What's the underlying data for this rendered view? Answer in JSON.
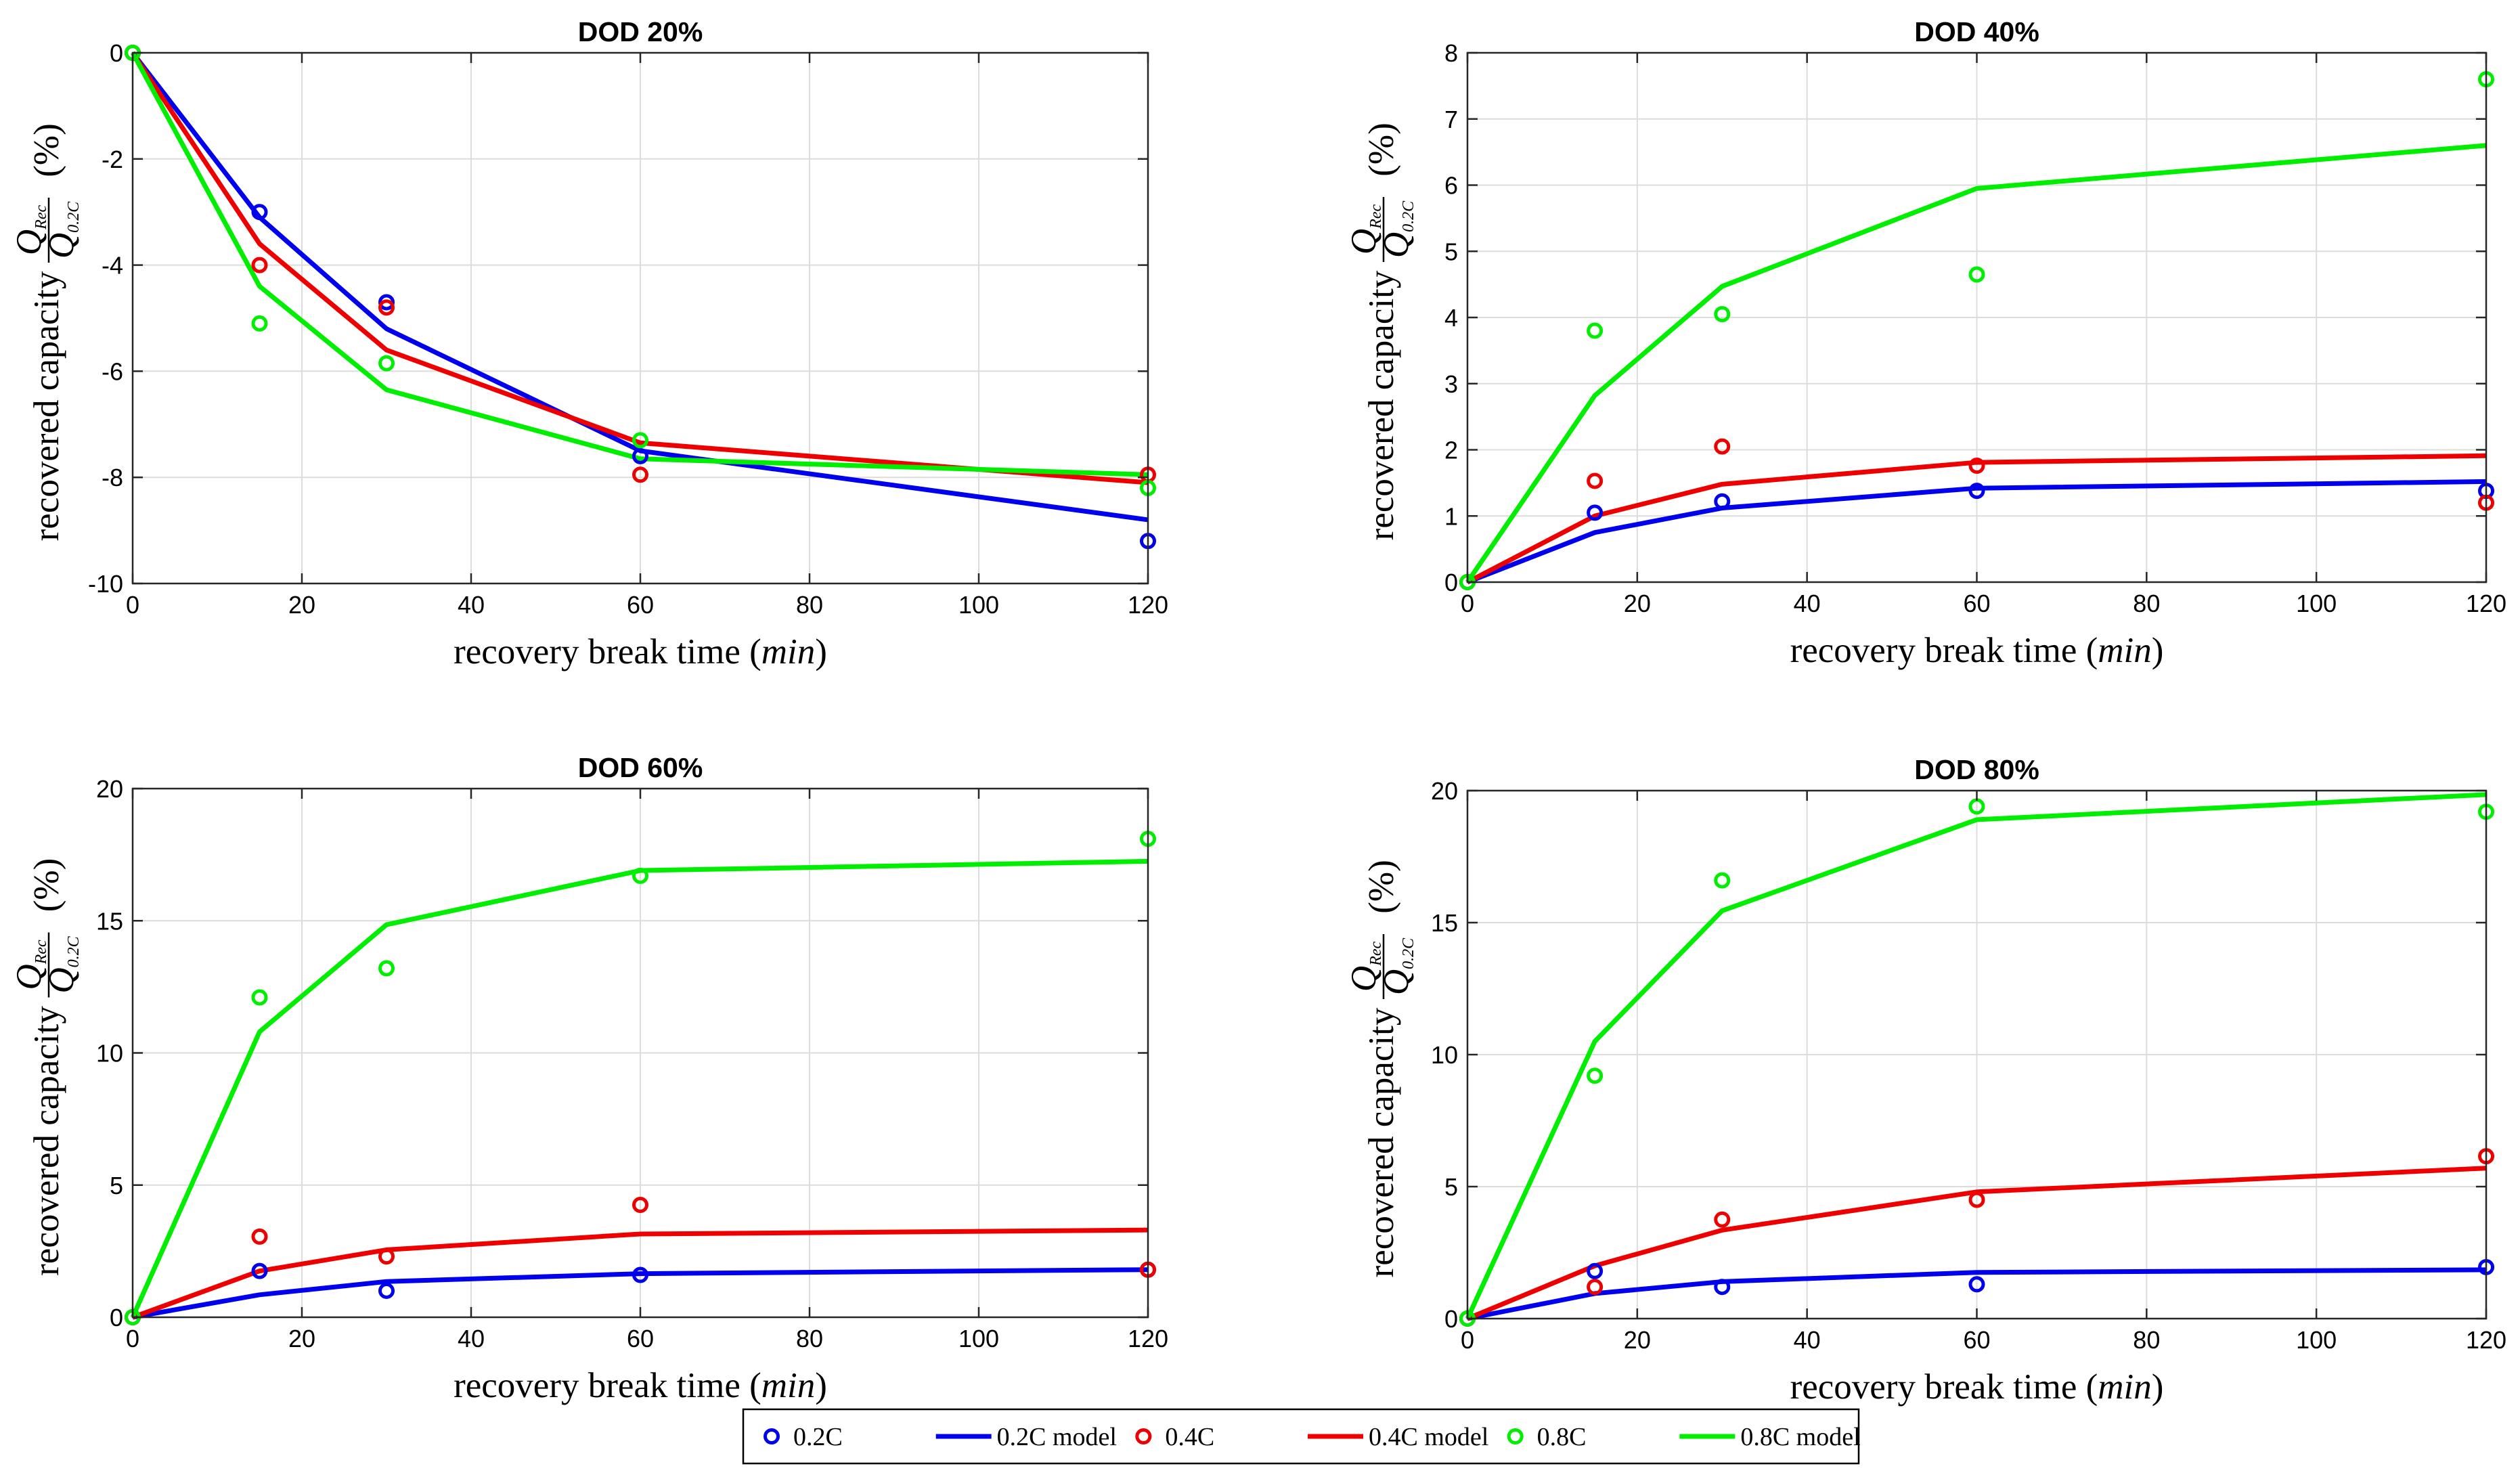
{
  "colors": {
    "0.2C": "#0000ee",
    "0.4C": "#ee0000",
    "0.8C": "#00ee00",
    "grid": "#dcdcdc",
    "axis": "#262626"
  },
  "axis_text": {
    "xlabel_main": "recovery break time",
    "xlabel_unit": "min",
    "ylabel_main": "recovered capacity",
    "ylabel_num_var": "Q",
    "ylabel_num_sub": "Rec",
    "ylabel_den_var": "Q",
    "ylabel_den_sub": "0.2C",
    "ylabel_unit": "(%)"
  },
  "legend": {
    "placement": "bottom-center",
    "entries": [
      {
        "label": "0.2C",
        "kind": "marker",
        "series": "0.2C"
      },
      {
        "label": "0.2C model",
        "kind": "line",
        "series": "0.2C"
      },
      {
        "label": "0.4C",
        "kind": "marker",
        "series": "0.4C"
      },
      {
        "label": "0.4C model",
        "kind": "line",
        "series": "0.4C"
      },
      {
        "label": "0.8C",
        "kind": "marker",
        "series": "0.8C"
      },
      {
        "label": "0.8C model",
        "kind": "line",
        "series": "0.8C"
      }
    ]
  },
  "chart_data": [
    {
      "type": "line",
      "title": "DOD 20%",
      "xlabel": "recovery break time (min)",
      "ylabel": "recovered capacity Q_Rec/Q_0.2C (%)",
      "xlim": [
        0,
        120
      ],
      "ylim": [
        -10,
        0
      ],
      "xticks": [
        0,
        20,
        40,
        60,
        80,
        100,
        120
      ],
      "yticks": [
        -10,
        -8,
        -6,
        -4,
        -2,
        0
      ],
      "grid": true,
      "x": [
        0,
        15,
        30,
        60,
        120
      ],
      "series": [
        {
          "name": "0.2C",
          "style": "markers",
          "values": [
            0,
            -3.0,
            -4.7,
            -7.6,
            -9.2
          ]
        },
        {
          "name": "0.4C",
          "style": "markers",
          "values": [
            0,
            -4.0,
            -4.8,
            -7.95,
            -7.95
          ]
        },
        {
          "name": "0.8C",
          "style": "markers",
          "values": [
            0,
            -5.1,
            -5.85,
            -7.3,
            -8.2
          ]
        },
        {
          "name": "0.2C model",
          "style": "line",
          "values": [
            0,
            -3.1,
            -5.2,
            -7.5,
            -8.8
          ]
        },
        {
          "name": "0.4C model",
          "style": "line",
          "values": [
            0,
            -3.6,
            -5.6,
            -7.35,
            -8.1
          ]
        },
        {
          "name": "0.8C model",
          "style": "line",
          "values": [
            0,
            -4.4,
            -6.35,
            -7.65,
            -7.95
          ]
        }
      ]
    },
    {
      "type": "line",
      "title": "DOD 40%",
      "xlabel": "recovery break time (min)",
      "ylabel": "recovered capacity Q_Rec/Q_0.2C (%)",
      "xlim": [
        0,
        120
      ],
      "ylim": [
        0,
        8
      ],
      "xticks": [
        0,
        20,
        40,
        60,
        80,
        100,
        120
      ],
      "yticks": [
        0,
        1,
        2,
        3,
        4,
        5,
        6,
        7,
        8
      ],
      "grid": true,
      "x": [
        0,
        15,
        30,
        60,
        120
      ],
      "series": [
        {
          "name": "0.2C",
          "style": "markers",
          "values": [
            0,
            1.05,
            1.22,
            1.38,
            1.38
          ]
        },
        {
          "name": "0.4C",
          "style": "markers",
          "values": [
            0,
            1.53,
            2.05,
            1.76,
            1.2
          ]
        },
        {
          "name": "0.8C",
          "style": "markers",
          "values": [
            0,
            3.8,
            4.05,
            4.65,
            7.6
          ]
        },
        {
          "name": "0.2C model",
          "style": "line",
          "values": [
            0,
            0.75,
            1.12,
            1.42,
            1.52
          ]
        },
        {
          "name": "0.4C model",
          "style": "line",
          "values": [
            0,
            1.0,
            1.48,
            1.81,
            1.91
          ]
        },
        {
          "name": "0.8C model",
          "style": "line",
          "values": [
            0,
            2.82,
            4.47,
            5.95,
            6.6
          ]
        }
      ]
    },
    {
      "type": "line",
      "title": "DOD 60%",
      "xlabel": "recovery break time (min)",
      "ylabel": "recovered capacity Q_Rec/Q_0.2C (%)",
      "xlim": [
        0,
        120
      ],
      "ylim": [
        0,
        20
      ],
      "xticks": [
        0,
        20,
        40,
        60,
        80,
        100,
        120
      ],
      "yticks": [
        0,
        5,
        10,
        15,
        20
      ],
      "grid": true,
      "x": [
        0,
        15,
        30,
        60,
        120
      ],
      "series": [
        {
          "name": "0.2C",
          "style": "markers",
          "values": [
            0,
            1.75,
            1.0,
            1.6,
            1.8
          ]
        },
        {
          "name": "0.4C",
          "style": "markers",
          "values": [
            0,
            3.05,
            2.3,
            4.25,
            1.8
          ]
        },
        {
          "name": "0.8C",
          "style": "markers",
          "values": [
            0,
            12.1,
            13.2,
            16.7,
            18.1
          ]
        },
        {
          "name": "0.2C model",
          "style": "line",
          "values": [
            0,
            0.85,
            1.35,
            1.65,
            1.8
          ]
        },
        {
          "name": "0.4C model",
          "style": "line",
          "values": [
            0,
            1.75,
            2.55,
            3.15,
            3.3
          ]
        },
        {
          "name": "0.8C model",
          "style": "line",
          "values": [
            0,
            10.8,
            14.85,
            16.9,
            17.25
          ]
        }
      ]
    },
    {
      "type": "line",
      "title": "DOD 80%",
      "xlabel": "recovery break time (min)",
      "ylabel": "recovered capacity Q_Rec/Q_0.2C (%)",
      "xlim": [
        0,
        120
      ],
      "ylim": [
        0,
        20
      ],
      "xticks": [
        0,
        20,
        40,
        60,
        80,
        100,
        120
      ],
      "yticks": [
        0,
        5,
        10,
        15,
        20
      ],
      "grid": true,
      "x": [
        0,
        15,
        30,
        60,
        120
      ],
      "series": [
        {
          "name": "0.2C",
          "style": "markers",
          "values": [
            0,
            1.8,
            1.2,
            1.3,
            1.95
          ]
        },
        {
          "name": "0.4C",
          "style": "markers",
          "values": [
            0,
            1.2,
            3.75,
            4.5,
            6.15
          ]
        },
        {
          "name": "0.8C",
          "style": "markers",
          "values": [
            0,
            9.2,
            16.6,
            19.4,
            19.2
          ]
        },
        {
          "name": "0.2C model",
          "style": "line",
          "values": [
            0,
            0.95,
            1.4,
            1.75,
            1.85
          ]
        },
        {
          "name": "0.4C model",
          "style": "line",
          "values": [
            0,
            2.0,
            3.35,
            4.8,
            5.7
          ]
        },
        {
          "name": "0.8C model",
          "style": "line",
          "values": [
            0,
            10.5,
            15.45,
            18.9,
            19.85
          ]
        }
      ]
    }
  ]
}
